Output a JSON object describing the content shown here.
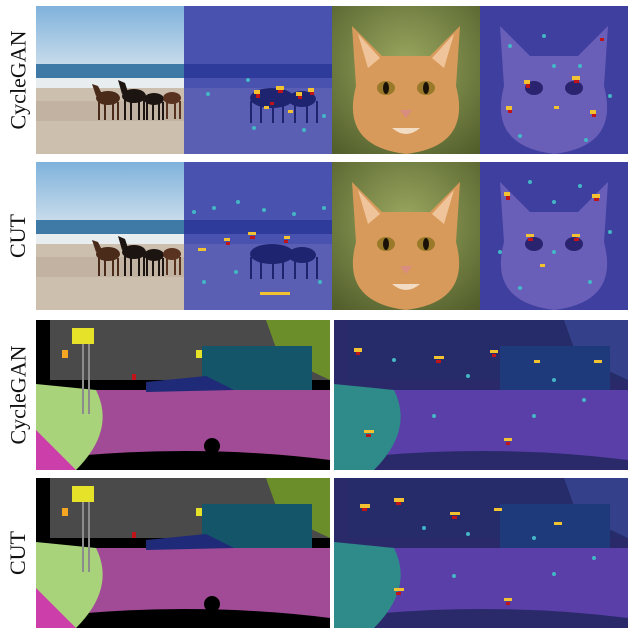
{
  "rows": [
    {
      "label": "CycleGAN"
    },
    {
      "label": "CUT"
    },
    {
      "label": "CycleGAN"
    },
    {
      "label": "CUT"
    }
  ],
  "colors": {
    "sky": "#9ec3df",
    "sea": "#3f7aa6",
    "sand": "#cdbfae",
    "cat_fur": "#d89a5a",
    "cat_bg": "#6f7f3c",
    "overlay": "#3a3fa8",
    "heat_hot": "#c0141b",
    "heat_mid": "#f2c230",
    "heat_cool": "#43b7c6",
    "road": "#a14a95",
    "sidewalk": "#a9d37a",
    "vegetation": "#6b8e2a",
    "building": "#4a4a4a",
    "car": "#1f2a78",
    "truck": "#14556a",
    "traffic_sign": "#e6e22a",
    "traffic_light": "#f6a623",
    "pole": "#8c8c8c"
  }
}
